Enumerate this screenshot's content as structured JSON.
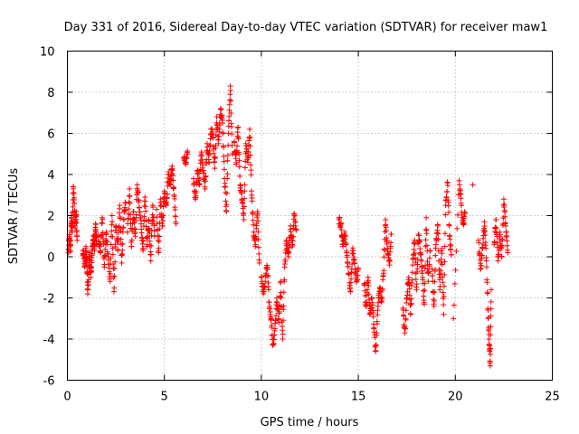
{
  "chart_data": {
    "type": "scatter",
    "title": "Day 331 of 2016, Sidereal Day-to-day VTEC variation (SDTVAR) for receiver maw1",
    "xlabel": "GPS time / hours",
    "ylabel": "SDTVAR / TECUs",
    "xlim": [
      0,
      25
    ],
    "ylim": [
      -6,
      10
    ],
    "xticks": [
      0,
      5,
      10,
      15,
      20,
      25
    ],
    "yticks": [
      -6,
      -4,
      -2,
      0,
      2,
      4,
      6,
      8,
      10
    ],
    "xtick_labels": [
      "0",
      "5",
      "10",
      "15",
      "20",
      "25"
    ],
    "ytick_labels": [
      "-6",
      "-4",
      "-2",
      "0",
      "2",
      "4",
      "6",
      "8",
      "10"
    ],
    "grid": true,
    "marker": "+",
    "color": "#ff0000",
    "series": [
      {
        "name": "SDTVAR",
        "segments": [
          {
            "x": [
              0.05,
              0.1,
              0.15,
              0.2,
              0.25,
              0.3,
              0.35,
              0.4,
              0.45,
              0.5
            ],
            "y": [
              0.2,
              1.0,
              0.3,
              2.0,
              1.2,
              3.4,
              2.6,
              1.5,
              2.2,
              0.8
            ]
          },
          {
            "x": [
              0.8,
              0.85,
              0.9,
              0.95,
              1.0,
              1.05,
              1.1,
              1.15,
              1.2,
              1.25,
              1.3,
              1.35,
              1.4,
              1.45,
              1.5
            ],
            "y": [
              0.3,
              0.1,
              -0.5,
              0.4,
              -0.3,
              -1.8,
              -0.8,
              0.2,
              -1.0,
              -0.2,
              0.5,
              1.0,
              0.3,
              1.6,
              0.8
            ]
          },
          {
            "x": [
              1.6,
              1.7,
              1.8,
              1.9,
              2.0,
              2.1,
              2.2,
              2.3,
              2.4,
              2.5,
              2.6,
              2.7,
              2.8,
              2.9,
              3.0
            ],
            "y": [
              1.0,
              0.2,
              1.9,
              -0.5,
              1.2,
              0.0,
              -1.2,
              2.0,
              -1.7,
              1.5,
              0.3,
              2.5,
              -0.3,
              1.8,
              2.6
            ]
          },
          {
            "x": [
              3.1,
              3.2,
              3.3,
              3.4,
              3.5,
              3.6,
              3.7,
              3.8,
              3.9,
              4.0,
              4.1,
              4.2,
              4.3,
              4.4,
              4.5
            ],
            "y": [
              1.2,
              3.3,
              0.5,
              2.2,
              1.0,
              3.5,
              2.4,
              1.6,
              0.3,
              2.9,
              0.5,
              1.8,
              -0.2,
              2.5,
              1.0
            ]
          },
          {
            "x": [
              4.6,
              4.7,
              4.8,
              4.9,
              5.0,
              5.1,
              5.2,
              5.3,
              5.4,
              5.5,
              5.6
            ],
            "y": [
              2.3,
              0.2,
              2.8,
              1.5,
              3.2,
              2.5,
              4.0,
              3.5,
              4.4,
              3.0,
              1.6
            ]
          },
          {
            "x": [
              6.0,
              6.1,
              6.2
            ],
            "y": [
              4.8,
              4.5,
              5.0
            ]
          },
          {
            "x": [
              6.5,
              6.6,
              6.7,
              6.8,
              6.9,
              7.0,
              7.1,
              7.2,
              7.3,
              7.4,
              7.5,
              7.6,
              7.7,
              7.8,
              7.9,
              8.0,
              8.1,
              8.2,
              8.3,
              8.4,
              8.5
            ],
            "y": [
              3.8,
              2.8,
              4.2,
              3.5,
              5.0,
              4.2,
              3.3,
              5.5,
              4.6,
              6.2,
              5.8,
              4.3,
              6.8,
              5.5,
              7.2,
              6.5,
              3.8,
              2.2,
              6.0,
              8.3,
              5.0
            ]
          },
          {
            "x": [
              8.6,
              8.7,
              8.8,
              8.9,
              9.0,
              9.1,
              9.2,
              9.3,
              9.4,
              9.5,
              9.6,
              9.7,
              9.8,
              9.9
            ],
            "y": [
              5.6,
              4.5,
              6.3,
              3.5,
              2.8,
              1.8,
              5.5,
              4.6,
              6.2,
              3.0,
              1.2,
              0.6,
              2.2,
              -0.3
            ]
          },
          {
            "x": [
              10.0,
              10.1,
              10.2,
              10.3,
              10.4,
              10.5,
              10.6,
              10.7,
              10.8,
              10.9,
              11.0,
              11.1,
              11.2,
              11.3,
              11.4,
              11.5,
              11.6,
              11.7,
              11.8
            ],
            "y": [
              -1.0,
              -1.8,
              -1.2,
              -0.5,
              -2.2,
              -3.0,
              -4.3,
              -3.5,
              -2.0,
              -3.2,
              -1.2,
              -4.0,
              -0.5,
              0.8,
              0.0,
              1.5,
              0.6,
              2.1,
              1.3
            ]
          },
          {
            "x": [
              14.0,
              14.1,
              14.2,
              14.3,
              14.4,
              14.5,
              14.6,
              14.7,
              14.8,
              14.9,
              15.0
            ],
            "y": [
              1.8,
              1.6,
              0.5,
              1.2,
              0.2,
              -0.8,
              -1.7,
              0.3,
              -0.3,
              -1.2,
              -0.6
            ]
          },
          {
            "x": [
              15.3,
              15.4,
              15.5,
              15.6,
              15.7,
              15.8,
              15.9,
              16.0,
              16.1,
              16.2,
              16.3,
              16.4,
              16.5,
              16.6,
              16.7
            ],
            "y": [
              -1.3,
              -2.4,
              -1.0,
              -2.8,
              -2.0,
              -3.5,
              -4.6,
              -2.6,
              -1.5,
              -2.2,
              -0.8,
              1.8,
              0.4,
              -0.4,
              1.1
            ]
          },
          {
            "x": [
              17.3,
              17.4,
              17.5,
              17.6,
              17.7,
              17.8,
              17.9,
              18.0,
              18.1,
              18.2,
              18.3,
              18.4,
              18.5,
              18.6,
              18.7
            ],
            "y": [
              -2.5,
              -3.7,
              -2.0,
              -1.0,
              -2.8,
              -0.4,
              0.8,
              -1.6,
              1.1,
              0.2,
              -0.8,
              -2.3,
              1.9,
              -1.2,
              0.3
            ]
          },
          {
            "x": [
              18.8,
              18.9,
              19.0,
              19.1,
              19.2,
              19.3,
              19.4,
              19.5,
              19.6,
              19.7,
              19.8
            ],
            "y": [
              -0.6,
              -2.4,
              0.6,
              1.5,
              -1.6,
              0.4,
              -2.8,
              2.5,
              3.6,
              1.0,
              0.1
            ]
          },
          {
            "x": [
              19.9,
              20.2,
              20.3,
              20.4,
              20.5
            ],
            "y": [
              -3.0,
              3.7,
              2.6,
              1.6,
              2.1
            ]
          },
          {
            "x": [
              20.9
            ],
            "y": [
              3.5
            ]
          },
          {
            "x": [
              21.2,
              21.3,
              21.4,
              21.5,
              21.6,
              21.7,
              21.75,
              21.8,
              21.85
            ],
            "y": [
              0.8,
              -0.6,
              0.4,
              1.7,
              -0.2,
              -3.0,
              -4.3,
              -5.3,
              -1.6
            ]
          },
          {
            "x": [
              22.0,
              22.1,
              22.2,
              22.3,
              22.4,
              22.5,
              22.6,
              22.7
            ],
            "y": [
              0.6,
              1.8,
              -0.2,
              1.2,
              0.0,
              2.8,
              1.5,
              0.2
            ]
          }
        ]
      }
    ]
  }
}
